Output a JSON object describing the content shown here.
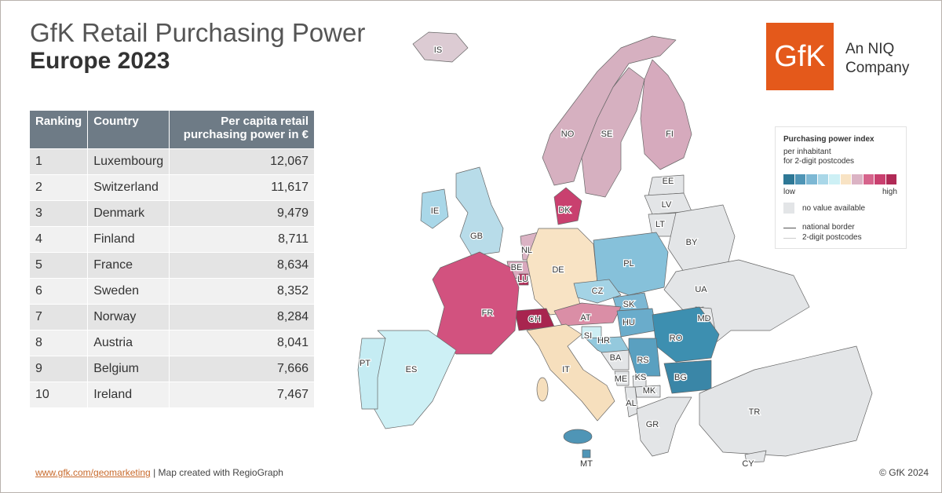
{
  "header": {
    "title": "GfK Retail Purchasing Power",
    "subtitle": "Europe 2023"
  },
  "logo": {
    "mark": "GfK",
    "lines": [
      "An NIQ",
      "Company"
    ]
  },
  "table": {
    "columns": [
      "Ranking",
      "Country",
      "Per capita retail purchasing power in €"
    ],
    "rows": [
      [
        "1",
        "Luxembourg",
        "12,067"
      ],
      [
        "2",
        "Switzerland",
        "11,617"
      ],
      [
        "3",
        "Denmark",
        "9,479"
      ],
      [
        "4",
        "Finland",
        "8,711"
      ],
      [
        "5",
        "France",
        "8,634"
      ],
      [
        "6",
        "Sweden",
        "8,352"
      ],
      [
        "7",
        "Norway",
        "8,284"
      ],
      [
        "8",
        "Austria",
        "8,041"
      ],
      [
        "9",
        "Belgium",
        "7,666"
      ],
      [
        "10",
        "Ireland",
        "7,467"
      ]
    ]
  },
  "legend": {
    "title": "Purchasing power index",
    "subtitle": [
      "per inhabitant",
      "for 2-digit postcodes"
    ],
    "low": "low",
    "high": "high",
    "colors": [
      "#2e7896",
      "#4f95b6",
      "#7db8d4",
      "#a9d7e8",
      "#cdf0f5",
      "#f8e3c4",
      "#dbb3c4",
      "#d6648c",
      "#c9406f",
      "#b02a56"
    ],
    "no_value": "no value available",
    "no_value_color": "#e3e5e7",
    "national_border": "national border",
    "postcodes": "2-digit postcodes"
  },
  "map": {
    "countries": [
      {
        "code": "IS",
        "color": "#dccbd3"
      },
      {
        "code": "NO",
        "color": "#d6b0c0"
      },
      {
        "code": "SE",
        "color": "#d6b0c0"
      },
      {
        "code": "FI",
        "color": "#d6aabd"
      },
      {
        "code": "EE",
        "color": "#e3e5e7"
      },
      {
        "code": "LV",
        "color": "#e3e5e7"
      },
      {
        "code": "LT",
        "color": "#e3e5e7"
      },
      {
        "code": "DK",
        "color": "#c9406f"
      },
      {
        "code": "IE",
        "color": "#a9d7e8"
      },
      {
        "code": "GB",
        "color": "#b8dce9"
      },
      {
        "code": "NL",
        "color": "#dbb3c4"
      },
      {
        "code": "BE",
        "color": "#d9a8bd"
      },
      {
        "code": "LU",
        "color": "#b02a56"
      },
      {
        "code": "DE",
        "color": "#f8e3c4"
      },
      {
        "code": "PL",
        "color": "#86c1da"
      },
      {
        "code": "BY",
        "color": "#e3e5e7"
      },
      {
        "code": "UA",
        "color": "#e3e5e7"
      },
      {
        "code": "CZ",
        "color": "#a4d3e5"
      },
      {
        "code": "SK",
        "color": "#7db8d4"
      },
      {
        "code": "AT",
        "color": "#da8ea6"
      },
      {
        "code": "HU",
        "color": "#6aaccb"
      },
      {
        "code": "MD",
        "color": "#e3e5e7"
      },
      {
        "code": "RO",
        "color": "#3d8fb0"
      },
      {
        "code": "CH",
        "color": "#a8254f"
      },
      {
        "code": "FR",
        "color": "#d2527f"
      },
      {
        "code": "SI",
        "color": "#cdeef3"
      },
      {
        "code": "HR",
        "color": "#94c9dd"
      },
      {
        "code": "BA",
        "color": "#e3e5e7"
      },
      {
        "code": "RS",
        "color": "#5aa0c0"
      },
      {
        "code": "BG",
        "color": "#3a86a7"
      },
      {
        "code": "ME",
        "color": "#e3e5e7"
      },
      {
        "code": "KS",
        "color": "#e3e5e7"
      },
      {
        "code": "MK",
        "color": "#e3e5e7"
      },
      {
        "code": "AL",
        "color": "#e3e5e7"
      },
      {
        "code": "IT",
        "color": "#f6dfbd"
      },
      {
        "code": "ES",
        "color": "#cdf0f5"
      },
      {
        "code": "PT",
        "color": "#c5ecf3"
      },
      {
        "code": "GR",
        "color": "#e3e5e7"
      },
      {
        "code": "TR",
        "color": "#e3e5e7"
      },
      {
        "code": "MT",
        "color": "#4f95b6"
      },
      {
        "code": "CY",
        "color": "#e3e5e7"
      }
    ]
  },
  "footer": {
    "link": "www.gfk.com/geomarketing",
    "text": "| Map created with RegioGraph",
    "copyright": "© GfK 2024"
  }
}
